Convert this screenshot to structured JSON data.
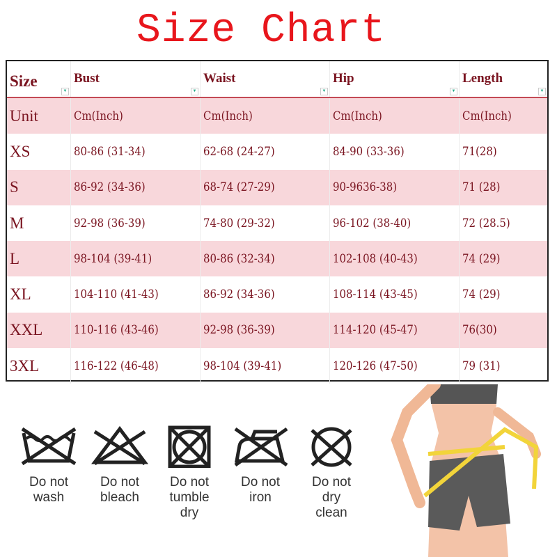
{
  "title": "Size Chart",
  "table": {
    "headers": [
      "Size",
      "Bust",
      "Waist",
      "Hip",
      "Length"
    ],
    "rows": [
      [
        "Unit",
        "Cm(Inch)",
        "Cm(Inch)",
        "Cm(Inch)",
        "Cm(Inch)"
      ],
      [
        "XS",
        "80-86 (31-34)",
        "62-68 (24-27)",
        "84-90 (33-36)",
        "71(28)"
      ],
      [
        "S",
        "86-92 (34-36)",
        "68-74 (27-29)",
        "90-9636-38)",
        "71 (28)"
      ],
      [
        "M",
        "92-98 (36-39)",
        "74-80 (29-32)",
        "96-102 (38-40)",
        "72 (28.5)"
      ],
      [
        "L",
        "98-104 (39-41)",
        "80-86 (32-34)",
        "102-108 (40-43)",
        "74 (29)"
      ],
      [
        "XL",
        "104-110 (41-43)",
        "86-92 (34-36)",
        "108-114 (43-45)",
        "74 (29)"
      ],
      [
        "XXL",
        "110-116 (43-46)",
        "92-98 (36-39)",
        "114-120 (45-47)",
        "76(30)"
      ],
      [
        "3XL",
        "116-122 (46-48)",
        "98-104 (39-41)",
        "120-126 (47-50)",
        "79 (31)"
      ]
    ]
  },
  "care": [
    {
      "icon": "do-not-wash-icon",
      "label": "Do not\nwash"
    },
    {
      "icon": "do-not-bleach-icon",
      "label": "Do not\nbleach"
    },
    {
      "icon": "do-not-tumble-dry-icon",
      "label": "Do not\ntumble\ndry"
    },
    {
      "icon": "do-not-iron-icon",
      "label": "Do not\niron"
    },
    {
      "icon": "do-not-dry-clean-icon",
      "label": "Do not\ndry\nclean"
    }
  ],
  "colors": {
    "title": "#e8161c",
    "text": "#7a1420",
    "pink_row": "#f8d7db",
    "tape": "#f2d43a"
  }
}
